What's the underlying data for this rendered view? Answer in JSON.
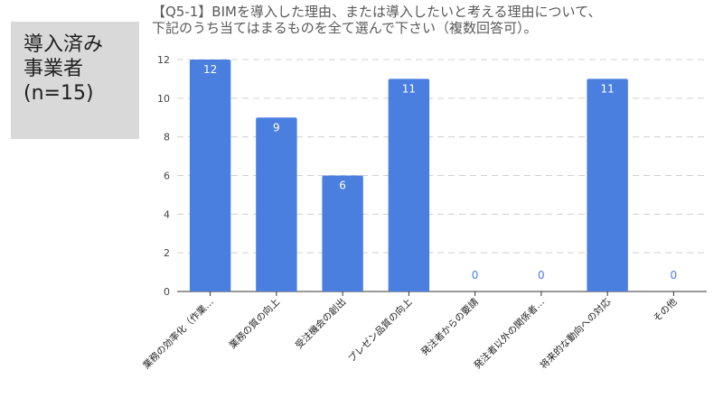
{
  "badge": {
    "lines": [
      "導入済み",
      "事業者",
      "(n=15)"
    ]
  },
  "chart_data": {
    "type": "bar",
    "title_lines": [
      "【Q5-1】BIMを導入した理由、または導入したいと考える理由について、",
      "下記のうち当てはまるものを全て選んで下さい（複数回答可）。"
    ],
    "categories": [
      "業務の効率化（作業…",
      "業務の質の向上",
      "受注機会の創出",
      "プレゼン品質の向上",
      "発注者からの要請",
      "発注者以外の関係者…",
      "将来的な動向への対応",
      "その他"
    ],
    "values": [
      12,
      9,
      6,
      11,
      0,
      0,
      11,
      0
    ],
    "ylim": [
      0,
      12
    ],
    "yticks": [
      0,
      2,
      4,
      6,
      8,
      10,
      12
    ],
    "grid": true,
    "bar_color": "#4a7fe0",
    "label_inside_color": "#ffffff",
    "label_zero_color": "#4a7fe0"
  }
}
